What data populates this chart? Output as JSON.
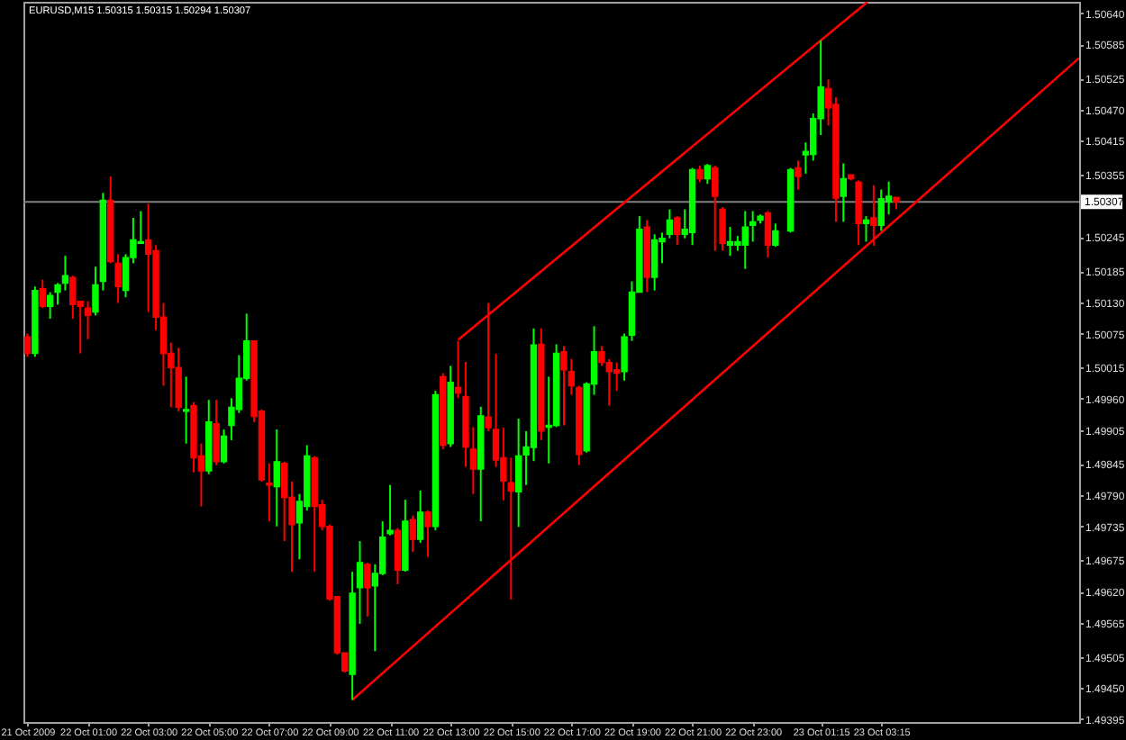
{
  "chart_data": {
    "type": "candlestick",
    "title": "EURUSD,M15 1.50315 1.50315 1.50294 1.50307",
    "x": [
      "2009-10-21T23:00",
      "2009-10-21T23:15",
      "2009-10-21T23:30",
      "2009-10-21T23:45",
      "2009-10-22T00:00",
      "2009-10-22T00:15",
      "2009-10-22T00:30",
      "2009-10-22T00:45",
      "2009-10-22T01:00",
      "2009-10-22T01:15",
      "2009-10-22T01:30",
      "2009-10-22T01:45",
      "2009-10-22T02:00",
      "2009-10-22T02:15",
      "2009-10-22T02:30",
      "2009-10-22T02:45",
      "2009-10-22T03:00",
      "2009-10-22T03:15",
      "2009-10-22T03:30",
      "2009-10-22T03:45",
      "2009-10-22T04:00",
      "2009-10-22T04:15",
      "2009-10-22T04:30",
      "2009-10-22T04:45",
      "2009-10-22T05:00",
      "2009-10-22T05:15",
      "2009-10-22T05:30",
      "2009-10-22T05:45",
      "2009-10-22T06:00",
      "2009-10-22T06:15",
      "2009-10-22T06:30",
      "2009-10-22T06:45",
      "2009-10-22T07:00",
      "2009-10-22T07:15",
      "2009-10-22T07:30",
      "2009-10-22T07:45",
      "2009-10-22T08:00",
      "2009-10-22T08:15",
      "2009-10-22T08:30",
      "2009-10-22T08:45",
      "2009-10-22T09:00",
      "2009-10-22T09:15",
      "2009-10-22T09:30",
      "2009-10-22T09:45",
      "2009-10-22T10:00",
      "2009-10-22T10:15",
      "2009-10-22T10:30",
      "2009-10-22T10:45",
      "2009-10-22T11:00",
      "2009-10-22T11:15",
      "2009-10-22T11:30",
      "2009-10-22T11:45",
      "2009-10-22T12:00",
      "2009-10-22T12:15",
      "2009-10-22T12:30",
      "2009-10-22T12:45",
      "2009-10-22T13:00",
      "2009-10-22T13:15",
      "2009-10-22T13:30",
      "2009-10-22T13:45",
      "2009-10-22T14:00",
      "2009-10-22T14:15",
      "2009-10-22T14:30",
      "2009-10-22T14:45",
      "2009-10-22T15:00",
      "2009-10-22T15:15",
      "2009-10-22T15:30",
      "2009-10-22T15:45",
      "2009-10-22T16:00",
      "2009-10-22T16:15",
      "2009-10-22T16:30",
      "2009-10-22T16:45",
      "2009-10-22T17:00",
      "2009-10-22T17:15",
      "2009-10-22T17:30",
      "2009-10-22T17:45",
      "2009-10-22T18:00",
      "2009-10-22T18:15",
      "2009-10-22T18:30",
      "2009-10-22T18:45",
      "2009-10-22T19:00",
      "2009-10-22T19:15",
      "2009-10-22T19:30",
      "2009-10-22T19:45",
      "2009-10-22T20:00",
      "2009-10-22T20:15",
      "2009-10-22T20:30",
      "2009-10-22T20:45",
      "2009-10-22T21:00",
      "2009-10-22T21:15",
      "2009-10-22T21:30",
      "2009-10-22T21:45",
      "2009-10-22T22:00",
      "2009-10-22T22:15",
      "2009-10-22T22:30",
      "2009-10-22T22:45",
      "2009-10-22T23:00",
      "2009-10-22T23:15",
      "2009-10-22T23:30",
      "2009-10-22T23:45",
      "2009-10-23T00:15",
      "2009-10-23T00:30",
      "2009-10-23T00:45",
      "2009-10-23T01:00",
      "2009-10-23T01:15",
      "2009-10-23T01:30",
      "2009-10-23T01:45",
      "2009-10-23T02:00",
      "2009-10-23T02:15",
      "2009-10-23T02:30",
      "2009-10-23T02:45",
      "2009-10-23T03:00",
      "2009-10-23T03:15",
      "2009-10-23T03:30",
      "2009-10-23T03:45"
    ],
    "ohlc": [
      [
        1.50069,
        1.50075,
        1.50034,
        1.5004
      ],
      [
        1.5004,
        1.50158,
        1.50034,
        1.50151
      ],
      [
        1.50154,
        1.5017,
        1.5012,
        1.50123
      ],
      [
        1.50123,
        1.50148,
        1.50101,
        1.50142
      ],
      [
        1.50148,
        1.50164,
        1.50126,
        1.50161
      ],
      [
        1.50164,
        1.50212,
        1.50151,
        1.50177
      ],
      [
        1.50174,
        1.50177,
        1.50101,
        1.50126
      ],
      [
        1.50132,
        1.50132,
        1.5004,
        1.50123
      ],
      [
        1.5012,
        1.50132,
        1.50065,
        1.50107
      ],
      [
        1.50113,
        1.50193,
        1.50107,
        1.50161
      ],
      [
        1.50167,
        1.50323,
        1.50151,
        1.5031
      ],
      [
        1.5031,
        1.50352,
        1.50199,
        1.50202
      ],
      [
        1.50199,
        1.50215,
        1.50129,
        1.50158
      ],
      [
        1.50151,
        1.50215,
        1.50139,
        1.50209
      ],
      [
        1.50209,
        1.50279,
        1.50199,
        1.5024
      ],
      [
        1.50234,
        1.50291,
        1.50234,
        1.50237
      ],
      [
        1.5024,
        1.50304,
        1.50113,
        1.50215
      ],
      [
        1.50221,
        1.50231,
        1.50081,
        1.50104
      ],
      [
        1.50104,
        1.50129,
        1.49983,
        1.5004
      ],
      [
        1.5004,
        1.50059,
        1.49945,
        1.50015
      ],
      [
        1.50015,
        1.5005,
        1.49938,
        1.49945
      ],
      [
        1.49938,
        1.49999,
        1.49881,
        1.49941
      ],
      [
        1.49948,
        1.49954,
        1.4983,
        1.49856
      ],
      [
        1.49859,
        1.49881,
        1.4977,
        1.49833
      ],
      [
        1.49833,
        1.49958,
        1.49827,
        1.49919
      ],
      [
        1.49916,
        1.49958,
        1.49843,
        1.49849
      ],
      [
        1.49849,
        1.49906,
        1.49846,
        1.49894
      ],
      [
        1.49913,
        1.49961,
        1.49887,
        1.49945
      ],
      [
        1.49941,
        1.50037,
        1.49935,
        1.49996
      ],
      [
        1.49996,
        1.5011,
        1.49992,
        1.50062
      ],
      [
        1.50062,
        1.50062,
        1.49919,
        1.49929
      ],
      [
        1.49938,
        1.49941,
        1.49814,
        1.49817
      ],
      [
        1.49811,
        1.49846,
        1.49744,
        1.49808
      ],
      [
        1.49805,
        1.49906,
        1.49735,
        1.49849
      ],
      [
        1.49846,
        1.49849,
        1.49709,
        1.49786
      ],
      [
        1.49786,
        1.49814,
        1.49655,
        1.49738
      ],
      [
        1.49741,
        1.49792,
        1.49677,
        1.49779
      ],
      [
        1.4977,
        1.49878,
        1.49763,
        1.49859
      ],
      [
        1.49856,
        1.49859,
        1.49655,
        1.4977
      ],
      [
        1.49773,
        1.49782,
        1.49728,
        1.49735
      ],
      [
        1.49735,
        1.49738,
        1.49604,
        1.49607
      ],
      [
        1.49611,
        1.49611,
        1.49509,
        1.49512
      ],
      [
        1.49512,
        1.49512,
        1.49477,
        1.4948
      ],
      [
        1.49474,
        1.49655,
        1.49429,
        1.49617
      ],
      [
        1.49627,
        1.49709,
        1.49563,
        1.49671
      ],
      [
        1.49668,
        1.49671,
        1.49576,
        1.49627
      ],
      [
        1.4963,
        1.49668,
        1.49515,
        1.49652
      ],
      [
        1.49652,
        1.49744,
        1.49649,
        1.49716
      ],
      [
        1.49722,
        1.49808,
        1.49719,
        1.49728
      ],
      [
        1.49728,
        1.49732,
        1.49633,
        1.49658
      ],
      [
        1.49658,
        1.49782,
        1.49655,
        1.49744
      ],
      [
        1.49747,
        1.49754,
        1.4969,
        1.49712
      ],
      [
        1.49712,
        1.49798,
        1.49706,
        1.4976
      ],
      [
        1.4976,
        1.49763,
        1.49681,
        1.49735
      ],
      [
        1.49735,
        1.49974,
        1.49728,
        1.49967
      ],
      [
        1.49999,
        1.50005,
        1.49871,
        1.49878
      ],
      [
        1.49881,
        1.50018,
        1.49875,
        1.49989
      ],
      [
        1.4998,
        1.50062,
        1.49961,
        1.4997
      ],
      [
        1.49964,
        1.50025,
        1.4984,
        1.49875
      ],
      [
        1.49871,
        1.4991,
        1.49792,
        1.49836
      ],
      [
        1.49836,
        1.49946,
        1.49744,
        1.4993
      ],
      [
        1.49928,
        1.50129,
        1.49903,
        1.49909
      ],
      [
        1.49906,
        1.50039,
        1.4984,
        1.49852
      ],
      [
        1.49856,
        1.49909,
        1.49781,
        1.49815
      ],
      [
        1.49812,
        1.49856,
        1.49606,
        1.49797
      ],
      [
        1.49796,
        1.49925,
        1.49734,
        1.49859
      ],
      [
        1.49861,
        1.49903,
        1.49808,
        1.49875
      ],
      [
        1.49874,
        1.50084,
        1.4985,
        1.50055
      ],
      [
        1.50056,
        1.50084,
        1.49887,
        1.49903
      ],
      [
        1.4991,
        1.49999,
        1.49846,
        1.49913
      ],
      [
        1.49913,
        1.50056,
        1.4991,
        1.5004
      ],
      [
        1.50043,
        1.50053,
        1.49913,
        1.50011
      ],
      [
        1.50008,
        1.5003,
        1.49967,
        1.49983
      ],
      [
        1.4998,
        1.49983,
        1.49843,
        1.49862
      ],
      [
        1.49868,
        1.49989,
        1.49865,
        1.49986
      ],
      [
        1.49986,
        1.50088,
        1.49967,
        1.50043
      ],
      [
        1.50043,
        1.50053,
        1.50018,
        1.50024
      ],
      [
        1.50024,
        1.5003,
        1.49948,
        1.50008
      ],
      [
        1.50011,
        1.50024,
        1.49974,
        1.50005
      ],
      [
        1.50008,
        1.50075,
        1.49992,
        1.50069
      ],
      [
        1.50072,
        1.50167,
        1.50062,
        1.50148
      ],
      [
        1.50148,
        1.50282,
        1.50148,
        1.50259
      ],
      [
        1.50263,
        1.50275,
        1.50148,
        1.50174
      ],
      [
        1.50174,
        1.5025,
        1.50151,
        1.5024
      ],
      [
        1.50237,
        1.50253,
        1.50199,
        1.50243
      ],
      [
        1.5025,
        1.50294,
        1.50243,
        1.50275
      ],
      [
        1.50279,
        1.50282,
        1.50231,
        1.5025
      ],
      [
        1.5025,
        1.50294,
        1.50243,
        1.50259
      ],
      [
        1.50253,
        1.50367,
        1.50231,
        1.50364
      ],
      [
        1.50364,
        1.50371,
        1.50342,
        1.50348
      ],
      [
        1.50348,
        1.50374,
        1.50339,
        1.50371
      ],
      [
        1.50367,
        1.50371,
        1.50221,
        1.50317
      ],
      [
        1.50294,
        1.50298,
        1.50221,
        1.50234
      ],
      [
        1.50231,
        1.50263,
        1.50212,
        1.50237
      ],
      [
        1.50231,
        1.50247,
        1.50221,
        1.50237
      ],
      [
        1.50231,
        1.50291,
        1.50189,
        1.50263
      ],
      [
        1.50266,
        1.50291,
        1.50237,
        1.50272
      ],
      [
        1.50275,
        1.50285,
        1.50269,
        1.50282
      ],
      [
        1.50288,
        1.50291,
        1.50209,
        1.50231
      ],
      [
        1.50231,
        1.50269,
        1.50228,
        1.50256
      ],
      [
        1.50256,
        1.50367,
        1.50253,
        1.50364
      ],
      [
        1.50367,
        1.5038,
        1.50329,
        1.50352
      ],
      [
        1.5039,
        1.50412,
        1.50357,
        1.50396
      ],
      [
        1.50391,
        1.50463,
        1.5038,
        1.50454
      ],
      [
        1.50454,
        1.50592,
        1.50425,
        1.5051
      ],
      [
        1.50507,
        1.50523,
        1.50442,
        1.50473
      ],
      [
        1.50479,
        1.50492,
        1.50272,
        1.50314
      ],
      [
        1.50317,
        1.50375,
        1.50272,
        1.50348
      ],
      [
        1.50355,
        1.50355,
        1.50345,
        1.50348
      ],
      [
        1.50342,
        1.50345,
        1.50231,
        1.50269
      ],
      [
        1.50269,
        1.50282,
        1.50237,
        1.50275
      ],
      [
        1.50279,
        1.50336,
        1.5023,
        1.50266
      ],
      [
        1.50266,
        1.50329,
        1.50256,
        1.50313
      ],
      [
        1.50307,
        1.50343,
        1.50285,
        1.50317
      ],
      [
        1.50315,
        1.50315,
        1.50294,
        1.50307
      ]
    ],
    "colors": [
      "#ff0000",
      "#00ff00",
      "#ff0000",
      "#00ff00",
      "#00ff00",
      "#00ff00",
      "#ff0000",
      "#ff0000",
      "#ff0000",
      "#00ff00",
      "#00ff00",
      "#ff0000",
      "#ff0000",
      "#00ff00",
      "#00ff00",
      "#00ff00",
      "#ff0000",
      "#ff0000",
      "#ff0000",
      "#ff0000",
      "#ff0000",
      "#00ff00",
      "#ff0000",
      "#ff0000",
      "#00ff00",
      "#ff0000",
      "#00ff00",
      "#00ff00",
      "#00ff00",
      "#00ff00",
      "#ff0000",
      "#ff0000",
      "#ff0000",
      "#00ff00",
      "#ff0000",
      "#ff0000",
      "#00ff00",
      "#00ff00",
      "#ff0000",
      "#ff0000",
      "#ff0000",
      "#ff0000",
      "#ff0000",
      "#00ff00",
      "#00ff00",
      "#ff0000",
      "#00ff00",
      "#00ff00",
      "#00ff00",
      "#ff0000",
      "#00ff00",
      "#ff0000",
      "#00ff00",
      "#ff0000",
      "#00ff00",
      "#ff0000",
      "#00ff00",
      "#ff0000",
      "#ff0000",
      "#ff0000",
      "#00ff00",
      "#ff0000",
      "#ff0000",
      "#ff0000",
      "#ff0000",
      "#00ff00",
      "#00ff00",
      "#00ff00",
      "#ff0000",
      "#00ff00",
      "#00ff00",
      "#ff0000",
      "#ff0000",
      "#ff0000",
      "#00ff00",
      "#00ff00",
      "#ff0000",
      "#ff0000",
      "#ff0000",
      "#00ff00",
      "#00ff00",
      "#00ff00",
      "#ff0000",
      "#00ff00",
      "#00ff00",
      "#00ff00",
      "#ff0000",
      "#00ff00",
      "#00ff00",
      "#ff0000",
      "#00ff00",
      "#ff0000",
      "#ff0000",
      "#00ff00",
      "#00ff00",
      "#00ff00",
      "#00ff00",
      "#00ff00",
      "#ff0000",
      "#00ff00",
      "#00ff00",
      "#ff0000",
      "#00ff00",
      "#00ff00",
      "#00ff00",
      "#ff0000",
      "#ff0000",
      "#00ff00",
      "#ff0000",
      "#ff0000",
      "#00ff00",
      "#ff0000",
      "#00ff00",
      "#00ff00",
      "#ff0000"
    ],
    "series": [
      {
        "type": "line",
        "x": [
          "2009-10-22T13:15",
          "2009-10-23T02:48"
        ],
        "values": [
          1.50064,
          1.5066
        ],
        "color": "#ff0000"
      },
      {
        "type": "line",
        "x": [
          "2009-10-22T09:45",
          "2009-10-23T09:48"
        ],
        "values": [
          1.49429,
          1.50561
        ],
        "color": "#ff0000"
      }
    ],
    "ref_lines": [
      {
        "axis": "y",
        "value": 1.50307,
        "label": "1.50307",
        "color": "#808080"
      }
    ],
    "xlim": [
      "2009-10-21T22:52",
      "2009-10-23T09:48"
    ],
    "xticks": [
      {
        "value": "2009-10-21T23:00",
        "label": "21 Oct 2009"
      },
      {
        "value": "2009-10-22T01:00",
        "label": "22 Oct 01:00"
      },
      {
        "value": "2009-10-22T03:00",
        "label": "22 Oct 03:00"
      },
      {
        "value": "2009-10-22T05:00",
        "label": "22 Oct 05:00"
      },
      {
        "value": "2009-10-22T07:00",
        "label": "22 Oct 07:00"
      },
      {
        "value": "2009-10-22T09:00",
        "label": "22 Oct 09:00"
      },
      {
        "value": "2009-10-22T11:00",
        "label": "22 Oct 11:00"
      },
      {
        "value": "2009-10-22T13:00",
        "label": "22 Oct 13:00"
      },
      {
        "value": "2009-10-22T15:00",
        "label": "22 Oct 15:00"
      },
      {
        "value": "2009-10-22T17:00",
        "label": "22 Oct 17:00"
      },
      {
        "value": "2009-10-22T19:00",
        "label": "22 Oct 19:00"
      },
      {
        "value": "2009-10-22T21:00",
        "label": "22 Oct 21:00"
      },
      {
        "value": "2009-10-22T23:00",
        "label": "22 Oct 23:00"
      },
      {
        "value": "2009-10-23T01:15",
        "label": "23 Oct 01:15"
      },
      {
        "value": "2009-10-23T03:15",
        "label": "23 Oct 03:15"
      }
    ],
    "ylim": [
      1.4939,
      1.5066
    ],
    "yticks": [
      {
        "value": 1.5064,
        "label": "1.50640"
      },
      1.50585,
      1.50525,
      {
        "value": 1.5047,
        "label": "1.50470"
      },
      1.50415,
      1.50355,
      1.50245,
      1.50185,
      {
        "value": 1.5013,
        "label": "1.50130"
      },
      1.50075,
      1.50015,
      {
        "value": 1.4996,
        "label": "1.49960"
      },
      1.49905,
      1.49845,
      {
        "value": 1.4979,
        "label": "1.49790"
      },
      1.49735,
      1.49675,
      {
        "value": 1.4962,
        "label": "1.49620"
      },
      1.49565,
      1.49505,
      {
        "value": 1.4945,
        "label": "1.49450"
      },
      1.49395
    ]
  }
}
